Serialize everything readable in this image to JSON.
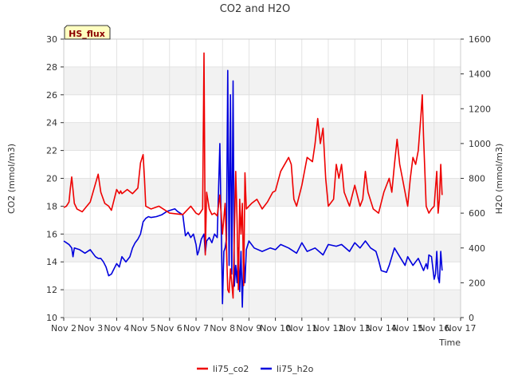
{
  "chart_data": {
    "type": "line",
    "title": "CO2 and H2O",
    "badge": "HS_flux",
    "xlabel": "Time",
    "ylabel_left": "CO2 (mmol/m3)",
    "ylabel_right": "H2O (mmol/m3)",
    "x_range": [
      2,
      17
    ],
    "ylim_left": [
      10,
      30
    ],
    "ylim_right": [
      0,
      1600
    ],
    "x_ticks": [
      {
        "value": 2,
        "label": "Nov 2"
      },
      {
        "value": 3,
        "label": "Nov 3"
      },
      {
        "value": 4,
        "label": "Nov 4"
      },
      {
        "value": 5,
        "label": "Nov 5"
      },
      {
        "value": 6,
        "label": "Nov 6"
      },
      {
        "value": 7,
        "label": "Nov 7"
      },
      {
        "value": 8,
        "label": "Nov 8"
      },
      {
        "value": 9,
        "label": "Nov 9"
      },
      {
        "value": 10,
        "label": "Nov 10"
      },
      {
        "value": 11,
        "label": "Nov 11"
      },
      {
        "value": 12,
        "label": "Nov 12"
      },
      {
        "value": 13,
        "label": "Nov 13"
      },
      {
        "value": 14,
        "label": "Nov 14"
      },
      {
        "value": 15,
        "label": "Nov 15"
      },
      {
        "value": 16,
        "label": "Nov 16"
      },
      {
        "value": 17,
        "label": "Nov 17"
      }
    ],
    "y_ticks_left": [
      10,
      12,
      14,
      16,
      18,
      20,
      22,
      24,
      26,
      28,
      30
    ],
    "y_ticks_right": [
      0,
      200,
      400,
      600,
      800,
      1000,
      1200,
      1400,
      1600
    ],
    "grid": true,
    "legend_position": "bottom-center",
    "series": [
      {
        "name": "li75_co2",
        "axis": "left",
        "color": "#ee0000",
        "x": [
          2.0,
          2.1,
          2.2,
          2.25,
          2.3,
          2.4,
          2.5,
          2.7,
          3.0,
          3.3,
          3.4,
          3.55,
          3.7,
          3.8,
          4.0,
          4.1,
          4.15,
          4.2,
          4.4,
          4.6,
          4.8,
          4.9,
          5.0,
          5.05,
          5.1,
          5.3,
          5.6,
          6.0,
          6.5,
          6.8,
          7.0,
          7.1,
          7.15,
          7.25,
          7.3,
          7.35,
          7.4,
          7.5,
          7.6,
          7.7,
          7.8,
          7.9,
          8.0,
          8.1,
          8.15,
          8.2,
          8.25,
          8.3,
          8.4,
          8.45,
          8.5,
          8.55,
          8.6,
          8.65,
          8.7,
          8.75,
          8.8,
          8.85,
          8.9,
          9.0,
          9.1,
          9.3,
          9.5,
          9.7,
          9.9,
          10.0,
          10.2,
          10.5,
          10.6,
          10.7,
          10.8,
          11.0,
          11.2,
          11.4,
          11.5,
          11.6,
          11.7,
          11.8,
          11.9,
          12.0,
          12.2,
          12.3,
          12.4,
          12.5,
          12.6,
          12.8,
          13.0,
          13.2,
          13.3,
          13.4,
          13.5,
          13.7,
          13.9,
          14.1,
          14.3,
          14.4,
          14.5,
          14.6,
          14.7,
          14.8,
          14.9,
          15.0,
          15.1,
          15.2,
          15.3,
          15.4,
          15.5,
          15.55,
          15.6,
          15.7,
          15.8,
          15.9,
          16.0,
          16.1,
          16.15,
          16.2,
          16.25,
          16.3
        ],
        "y": [
          17.9,
          18.0,
          18.3,
          19.3,
          20.1,
          18.2,
          17.8,
          17.6,
          18.3,
          20.3,
          19.0,
          18.2,
          18.0,
          17.7,
          19.2,
          18.9,
          19.1,
          18.9,
          19.2,
          18.9,
          19.3,
          21.1,
          21.7,
          20.0,
          18.0,
          17.8,
          18.0,
          17.5,
          17.4,
          18.0,
          17.5,
          17.4,
          17.5,
          17.8,
          29.0,
          14.5,
          19.0,
          17.8,
          17.4,
          17.5,
          17.3,
          18.8,
          16.0,
          18.2,
          15.0,
          12.0,
          11.8,
          13.5,
          11.4,
          16.0,
          20.5,
          17.0,
          12.0,
          18.5,
          16.0,
          18.2,
          12.3,
          20.4,
          17.8,
          18.0,
          18.2,
          18.5,
          17.8,
          18.3,
          19.0,
          19.1,
          20.5,
          21.5,
          21.0,
          18.5,
          18.0,
          19.5,
          21.5,
          21.2,
          22.5,
          24.3,
          22.5,
          23.6,
          20.0,
          18.0,
          18.5,
          21.0,
          20.0,
          21.0,
          19.0,
          18.0,
          19.5,
          18.0,
          18.5,
          20.5,
          19.0,
          17.8,
          17.5,
          19.0,
          20.0,
          19.0,
          21.0,
          22.8,
          21.0,
          20.0,
          19.0,
          18.0,
          20.0,
          21.5,
          21.0,
          22.0,
          24.5,
          26.0,
          23.0,
          18.0,
          17.5,
          17.8,
          18.0,
          20.5,
          17.5,
          18.5,
          21.0,
          18.8
        ]
      },
      {
        "name": "li75_h2o",
        "axis": "right",
        "color": "#0000dd",
        "x": [
          2.0,
          2.1,
          2.2,
          2.3,
          2.35,
          2.4,
          2.6,
          2.8,
          3.0,
          3.1,
          3.2,
          3.3,
          3.4,
          3.5,
          3.6,
          3.7,
          3.8,
          3.9,
          4.0,
          4.1,
          4.2,
          4.35,
          4.5,
          4.6,
          4.7,
          4.8,
          4.9,
          5.0,
          5.1,
          5.2,
          5.3,
          5.5,
          5.7,
          5.9,
          6.1,
          6.2,
          6.3,
          6.5,
          6.6,
          6.7,
          6.8,
          6.9,
          7.0,
          7.05,
          7.1,
          7.2,
          7.3,
          7.35,
          7.4,
          7.5,
          7.6,
          7.7,
          7.8,
          7.9,
          8.0,
          8.05,
          8.1,
          8.15,
          8.2,
          8.25,
          8.3,
          8.35,
          8.4,
          8.45,
          8.5,
          8.55,
          8.6,
          8.65,
          8.7,
          8.75,
          8.8,
          8.85,
          8.9,
          9.0,
          9.2,
          9.5,
          9.8,
          10.0,
          10.2,
          10.5,
          10.8,
          11.0,
          11.2,
          11.5,
          11.8,
          12.0,
          12.3,
          12.5,
          12.8,
          13.0,
          13.2,
          13.4,
          13.6,
          13.8,
          13.9,
          14.0,
          14.2,
          14.3,
          14.4,
          14.5,
          14.7,
          14.9,
          15.0,
          15.2,
          15.4,
          15.6,
          15.7,
          15.75,
          15.8,
          15.9,
          16.0,
          16.05,
          16.1,
          16.15,
          16.2,
          16.25,
          16.3
        ],
        "y": [
          440,
          430,
          420,
          400,
          350,
          400,
          390,
          370,
          390,
          370,
          350,
          340,
          340,
          320,
          290,
          240,
          250,
          280,
          310,
          290,
          350,
          320,
          350,
          400,
          430,
          450,
          480,
          550,
          570,
          580,
          575,
          580,
          590,
          610,
          620,
          625,
          610,
          590,
          470,
          490,
          460,
          480,
          420,
          360,
          380,
          450,
          480,
          370,
          440,
          460,
          430,
          480,
          460,
          1000,
          80,
          380,
          400,
          450,
          1420,
          300,
          1280,
          250,
          1360,
          180,
          300,
          200,
          400,
          150,
          380,
          60,
          360,
          200,
          390,
          440,
          400,
          380,
          400,
          390,
          420,
          400,
          370,
          430,
          380,
          400,
          360,
          420,
          410,
          420,
          380,
          430,
          400,
          440,
          400,
          380,
          330,
          270,
          260,
          300,
          350,
          400,
          350,
          300,
          350,
          300,
          340,
          270,
          310,
          280,
          360,
          350,
          220,
          250,
          380,
          230,
          200,
          380,
          270
        ]
      }
    ]
  }
}
